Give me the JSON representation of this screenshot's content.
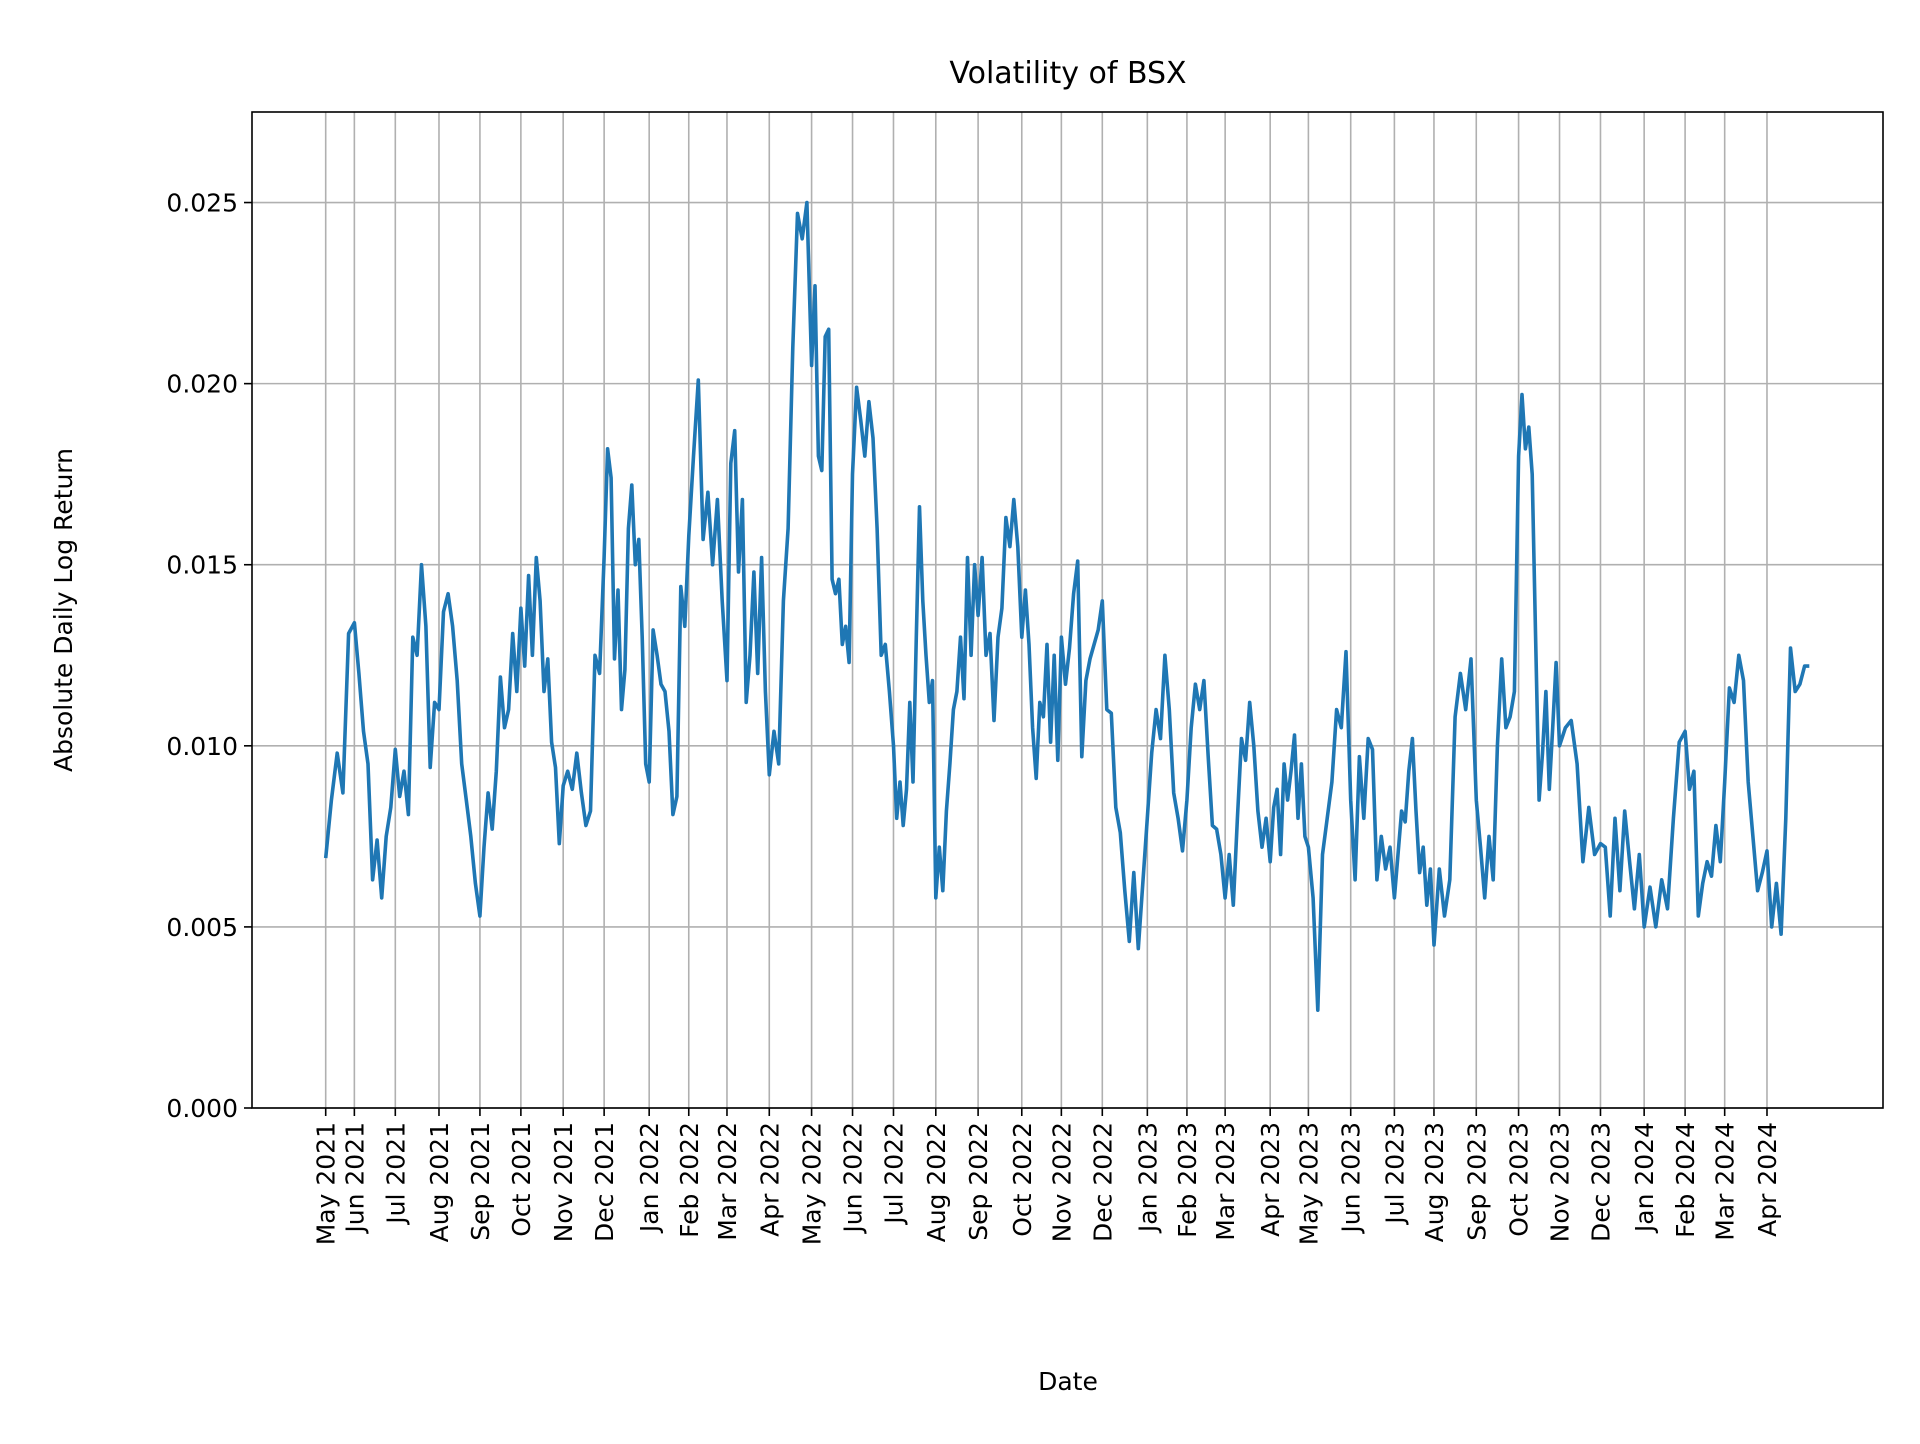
{
  "chart_data": {
    "type": "line",
    "title": "Volatility of BSX",
    "xlabel": "Date",
    "ylabel": "Absolute Daily Log Return",
    "ylim": [
      0,
      0.0275
    ],
    "xlim": [
      "2021-03-18",
      "2024-06-25"
    ],
    "grid": true,
    "line_color": "#1f77b4",
    "y_ticks": [
      {
        "value": 0.0,
        "label": "0.000"
      },
      {
        "value": 0.005,
        "label": "0.005"
      },
      {
        "value": 0.01,
        "label": "0.010"
      },
      {
        "value": 0.015,
        "label": "0.015"
      },
      {
        "value": 0.02,
        "label": "0.020"
      },
      {
        "value": 0.025,
        "label": "0.025"
      }
    ],
    "x_ticks": [
      {
        "date": "2021-05-11",
        "label": "May 2021"
      },
      {
        "date": "2021-06-01",
        "label": "Jun 2021"
      },
      {
        "date": "2021-07-01",
        "label": "Jul 2021"
      },
      {
        "date": "2021-08-02",
        "label": "Aug 2021"
      },
      {
        "date": "2021-09-01",
        "label": "Sep 2021"
      },
      {
        "date": "2021-10-01",
        "label": "Oct 2021"
      },
      {
        "date": "2021-11-01",
        "label": "Nov 2021"
      },
      {
        "date": "2021-12-01",
        "label": "Dec 2021"
      },
      {
        "date": "2022-01-03",
        "label": "Jan 2022"
      },
      {
        "date": "2022-02-01",
        "label": "Feb 2022"
      },
      {
        "date": "2022-03-01",
        "label": "Mar 2022"
      },
      {
        "date": "2022-04-01",
        "label": "Apr 2022"
      },
      {
        "date": "2022-05-02",
        "label": "May 2022"
      },
      {
        "date": "2022-06-01",
        "label": "Jun 2022"
      },
      {
        "date": "2022-07-01",
        "label": "Jul 2022"
      },
      {
        "date": "2022-08-01",
        "label": "Aug 2022"
      },
      {
        "date": "2022-09-01",
        "label": "Sep 2022"
      },
      {
        "date": "2022-10-03",
        "label": "Oct 2022"
      },
      {
        "date": "2022-11-01",
        "label": "Nov 2022"
      },
      {
        "date": "2022-12-01",
        "label": "Dec 2022"
      },
      {
        "date": "2023-01-03",
        "label": "Jan 2023"
      },
      {
        "date": "2023-02-01",
        "label": "Feb 2023"
      },
      {
        "date": "2023-03-01",
        "label": "Mar 2023"
      },
      {
        "date": "2023-04-03",
        "label": "Apr 2023"
      },
      {
        "date": "2023-05-01",
        "label": "May 2023"
      },
      {
        "date": "2023-06-01",
        "label": "Jun 2023"
      },
      {
        "date": "2023-07-03",
        "label": "Jul 2023"
      },
      {
        "date": "2023-08-01",
        "label": "Aug 2023"
      },
      {
        "date": "2023-09-01",
        "label": "Sep 2023"
      },
      {
        "date": "2023-10-02",
        "label": "Oct 2023"
      },
      {
        "date": "2023-11-01",
        "label": "Nov 2023"
      },
      {
        "date": "2023-12-01",
        "label": "Dec 2023"
      },
      {
        "date": "2024-01-02",
        "label": "Jan 2024"
      },
      {
        "date": "2024-02-01",
        "label": "Feb 2024"
      },
      {
        "date": "2024-03-01",
        "label": "Mar 2024"
      },
      {
        "date": "2024-04-01",
        "label": "Apr 2024"
      }
    ],
    "segments": [
      {
        "start": "2021-05-11",
        "end": "2021-06-01",
        "values": [
          0.0069,
          0.0085,
          0.0098,
          0.0087,
          0.0131
        ]
      },
      {
        "start": "2021-06-01",
        "end": "2021-07-01",
        "values": [
          0.0134,
          0.012,
          0.0104,
          0.0095,
          0.0063,
          0.0074,
          0.0058,
          0.0075,
          0.0083
        ]
      },
      {
        "start": "2021-07-01",
        "end": "2021-08-02",
        "values": [
          0.0099,
          0.0086,
          0.0093,
          0.0081,
          0.013,
          0.0125,
          0.015,
          0.0133,
          0.0094,
          0.0112
        ]
      },
      {
        "start": "2021-08-02",
        "end": "2021-09-01",
        "values": [
          0.011,
          0.0137,
          0.0142,
          0.0133,
          0.0118,
          0.0095,
          0.0085,
          0.0075,
          0.0062
        ]
      },
      {
        "start": "2021-09-01",
        "end": "2021-10-01",
        "values": [
          0.0053,
          0.0072,
          0.0087,
          0.0077,
          0.0093,
          0.0119,
          0.0105,
          0.011,
          0.0131,
          0.0115
        ]
      },
      {
        "start": "2021-10-01",
        "end": "2021-11-01",
        "values": [
          0.0138,
          0.0122,
          0.0147,
          0.0125,
          0.0152,
          0.014,
          0.0115,
          0.0124,
          0.0101,
          0.0094,
          0.0073
        ]
      },
      {
        "start": "2021-11-01",
        "end": "2021-12-01",
        "values": [
          0.0089,
          0.0093,
          0.0088,
          0.0098,
          0.0087,
          0.0078,
          0.0082,
          0.0125,
          0.012
        ]
      },
      {
        "start": "2021-12-01",
        "end": "2022-01-03",
        "values": [
          0.0152,
          0.0182,
          0.0174,
          0.0124,
          0.0143,
          0.011,
          0.0121,
          0.016,
          0.0172,
          0.015,
          0.0157,
          0.013,
          0.0095
        ]
      },
      {
        "start": "2022-01-03",
        "end": "2022-02-01",
        "values": [
          0.009,
          0.0132,
          0.0125,
          0.0117,
          0.0115,
          0.0104,
          0.0081,
          0.0086,
          0.0144,
          0.0133
        ]
      },
      {
        "start": "2022-02-01",
        "end": "2022-03-01",
        "values": [
          0.0158,
          0.018,
          0.0201,
          0.0157,
          0.017,
          0.015,
          0.0168,
          0.014
        ]
      },
      {
        "start": "2022-03-01",
        "end": "2022-04-01",
        "values": [
          0.0118,
          0.0178,
          0.0187,
          0.0148,
          0.0168,
          0.0112,
          0.0125,
          0.0148,
          0.012,
          0.0152,
          0.0115
        ]
      },
      {
        "start": "2022-04-01",
        "end": "2022-05-02",
        "values": [
          0.0092,
          0.0104,
          0.0095,
          0.014,
          0.016,
          0.021,
          0.0247,
          0.024,
          0.025
        ]
      },
      {
        "start": "2022-05-02",
        "end": "2022-06-01",
        "values": [
          0.0205,
          0.0227,
          0.018,
          0.0176,
          0.0213,
          0.0215,
          0.0146,
          0.0142,
          0.0146,
          0.0128,
          0.0133,
          0.0123
        ]
      },
      {
        "start": "2022-06-01",
        "end": "2022-07-01",
        "values": [
          0.0175,
          0.0199,
          0.019,
          0.018,
          0.0195,
          0.0185,
          0.016,
          0.0125,
          0.0128,
          0.0115
        ]
      },
      {
        "start": "2022-07-01",
        "end": "2022-08-01",
        "values": [
          0.01,
          0.008,
          0.009,
          0.0078,
          0.0088,
          0.0112,
          0.009,
          0.013,
          0.0166,
          0.014,
          0.0125,
          0.0112,
          0.0118
        ]
      },
      {
        "start": "2022-08-01",
        "end": "2022-09-01",
        "values": [
          0.0058,
          0.0072,
          0.006,
          0.0082,
          0.0095,
          0.011,
          0.0115,
          0.013,
          0.0113,
          0.0152,
          0.0125,
          0.015
        ]
      },
      {
        "start": "2022-09-01",
        "end": "2022-10-03",
        "values": [
          0.0136,
          0.0152,
          0.0125,
          0.0131,
          0.0107,
          0.013,
          0.0138,
          0.0163,
          0.0155,
          0.0168,
          0.0155
        ]
      },
      {
        "start": "2022-10-03",
        "end": "2022-11-01",
        "values": [
          0.013,
          0.0143,
          0.0128,
          0.0105,
          0.0091,
          0.0112,
          0.0108,
          0.0128,
          0.0101,
          0.0125,
          0.0096
        ]
      },
      {
        "start": "2022-11-01",
        "end": "2022-12-01",
        "values": [
          0.013,
          0.0117,
          0.0127,
          0.0142,
          0.0151,
          0.0097,
          0.0118,
          0.0124,
          0.0128,
          0.0132
        ]
      },
      {
        "start": "2022-12-01",
        "end": "2023-01-03",
        "values": [
          0.014,
          0.011,
          0.0109,
          0.0083,
          0.0076,
          0.006,
          0.0046,
          0.0065,
          0.0044,
          0.0062
        ]
      },
      {
        "start": "2023-01-03",
        "end": "2023-02-01",
        "values": [
          0.008,
          0.0098,
          0.011,
          0.0102,
          0.0125,
          0.011,
          0.0087,
          0.008,
          0.0071
        ]
      },
      {
        "start": "2023-02-01",
        "end": "2023-03-01",
        "values": [
          0.0085,
          0.0105,
          0.0117,
          0.011,
          0.0118,
          0.0097,
          0.0078,
          0.0077,
          0.007
        ]
      },
      {
        "start": "2023-03-01",
        "end": "2023-04-03",
        "values": [
          0.0058,
          0.007,
          0.0056,
          0.008,
          0.0102,
          0.0096,
          0.0112,
          0.01,
          0.0082,
          0.0072,
          0.008
        ]
      },
      {
        "start": "2023-04-03",
        "end": "2023-05-01",
        "values": [
          0.0068,
          0.0083,
          0.0088,
          0.007,
          0.0095,
          0.0085,
          0.0093,
          0.0103,
          0.008,
          0.0095,
          0.0075
        ]
      },
      {
        "start": "2023-05-01",
        "end": "2023-06-01",
        "values": [
          0.0072,
          0.0058,
          0.0027,
          0.007,
          0.008,
          0.009,
          0.011,
          0.0105,
          0.0126
        ]
      },
      {
        "start": "2023-06-01",
        "end": "2023-07-03",
        "values": [
          0.0085,
          0.0063,
          0.0097,
          0.008,
          0.0102,
          0.0099,
          0.0063,
          0.0075,
          0.0066,
          0.0072
        ]
      },
      {
        "start": "2023-07-03",
        "end": "2023-08-01",
        "values": [
          0.0058,
          0.007,
          0.0082,
          0.0079,
          0.0093,
          0.0102,
          0.0082,
          0.0065,
          0.0072,
          0.0056,
          0.0066
        ]
      },
      {
        "start": "2023-08-01",
        "end": "2023-09-01",
        "values": [
          0.0045,
          0.0066,
          0.0053,
          0.0063,
          0.0108,
          0.012,
          0.011,
          0.0124
        ]
      },
      {
        "start": "2023-09-01",
        "end": "2023-10-02",
        "values": [
          0.0085,
          0.0072,
          0.0058,
          0.0075,
          0.0063,
          0.01,
          0.0124,
          0.0105,
          0.0108,
          0.0115
        ]
      },
      {
        "start": "2023-10-02",
        "end": "2023-11-01",
        "values": [
          0.018,
          0.0197,
          0.0182,
          0.0188,
          0.0175,
          0.013,
          0.0085,
          0.0098,
          0.0115,
          0.0088,
          0.0105,
          0.0123
        ]
      },
      {
        "start": "2023-11-01",
        "end": "2023-12-01",
        "values": [
          0.01,
          0.0105,
          0.0107,
          0.0095,
          0.0068,
          0.0083,
          0.007
        ]
      },
      {
        "start": "2023-12-01",
        "end": "2024-01-02",
        "values": [
          0.0073,
          0.0072,
          0.0053,
          0.008,
          0.006,
          0.0082,
          0.0068,
          0.0055,
          0.007
        ]
      },
      {
        "start": "2024-01-02",
        "end": "2024-02-01",
        "values": [
          0.005,
          0.0061,
          0.005,
          0.0063,
          0.0055,
          0.008,
          0.0101
        ]
      },
      {
        "start": "2024-02-01",
        "end": "2024-03-01",
        "values": [
          0.0104,
          0.0088,
          0.0093,
          0.0053,
          0.0062,
          0.0068,
          0.0064,
          0.0078,
          0.0068
        ]
      },
      {
        "start": "2024-03-01",
        "end": "2024-04-01",
        "values": [
          0.009,
          0.0116,
          0.0112,
          0.0125,
          0.0118,
          0.009,
          0.0075,
          0.006,
          0.0065
        ]
      },
      {
        "start": "2024-04-01",
        "end": "2024-05-02",
        "values": [
          0.0071,
          0.005,
          0.0062,
          0.0048,
          0.008,
          0.0127,
          0.0115,
          0.0117,
          0.0122
        ]
      }
    ]
  }
}
